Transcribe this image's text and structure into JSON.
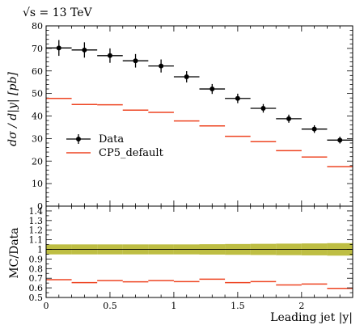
{
  "chart_data": [
    {
      "type": "scatter",
      "panel": "main",
      "title": "√s = 13 TeV",
      "xlabel": "Leading jet |y|",
      "ylabel": "dσ / d|y| [pb]",
      "xlim": [
        0,
        2.4
      ],
      "ylim": [
        0,
        80
      ],
      "x_ticks": [
        "0",
        "0.5",
        "1",
        "1.5",
        "2"
      ],
      "y_ticks": [
        "0",
        "10",
        "20",
        "30",
        "40",
        "50",
        "60",
        "70",
        "80"
      ],
      "bin_edges": [
        0,
        0.2,
        0.4,
        0.6,
        0.8,
        1.0,
        1.2,
        1.4,
        1.6,
        1.8,
        2.0,
        2.2,
        2.4
      ],
      "legend_position": "middle-left",
      "series": [
        {
          "name": "Data",
          "style": "points-with-errors",
          "color": "#000000",
          "x": [
            0.1,
            0.3,
            0.5,
            0.7,
            0.9,
            1.1,
            1.3,
            1.5,
            1.7,
            1.9,
            2.1,
            2.3
          ],
          "values": [
            70.2,
            69.3,
            66.8,
            64.5,
            62.2,
            57.4,
            52.0,
            47.8,
            43.4,
            38.8,
            34.2,
            29.3
          ],
          "errors": [
            3.5,
            3.4,
            3.2,
            3.0,
            2.9,
            2.5,
            2.2,
            2.1,
            1.9,
            1.8,
            1.7,
            1.5
          ]
        },
        {
          "name": "CP5_default",
          "style": "histogram-steps",
          "color": "#ee4422",
          "values": [
            47.8,
            45.1,
            45.0,
            42.6,
            41.6,
            37.8,
            35.6,
            31.0,
            28.6,
            24.6,
            21.8,
            17.5
          ]
        }
      ]
    },
    {
      "type": "scatter",
      "panel": "ratio",
      "ylabel": "MC/Data",
      "xlim": [
        0,
        2.4
      ],
      "ylim": [
        0.5,
        1.45
      ],
      "y_ticks": [
        "0.5",
        "0.6",
        "0.7",
        "0.8",
        "0.9",
        "1",
        "1.1",
        "1.2",
        "1.3",
        "1.4"
      ],
      "x_ticks": [
        "0",
        "0.5",
        "1",
        "1.5",
        "2"
      ],
      "uncertainty_band": {
        "color": "#b3b322",
        "lower": [
          0.948,
          0.948,
          0.948,
          0.948,
          0.948,
          0.948,
          0.946,
          0.944,
          0.942,
          0.94,
          0.938,
          0.935
        ],
        "upper": [
          1.052,
          1.052,
          1.052,
          1.052,
          1.052,
          1.052,
          1.054,
          1.056,
          1.058,
          1.06,
          1.062,
          1.065
        ]
      },
      "reference_line": 1.0,
      "series": [
        {
          "name": "CP5_default",
          "color": "#ee4422",
          "values": [
            0.685,
            0.655,
            0.675,
            0.663,
            0.675,
            0.665,
            0.69,
            0.655,
            0.665,
            0.63,
            0.64,
            0.595
          ]
        }
      ]
    }
  ]
}
